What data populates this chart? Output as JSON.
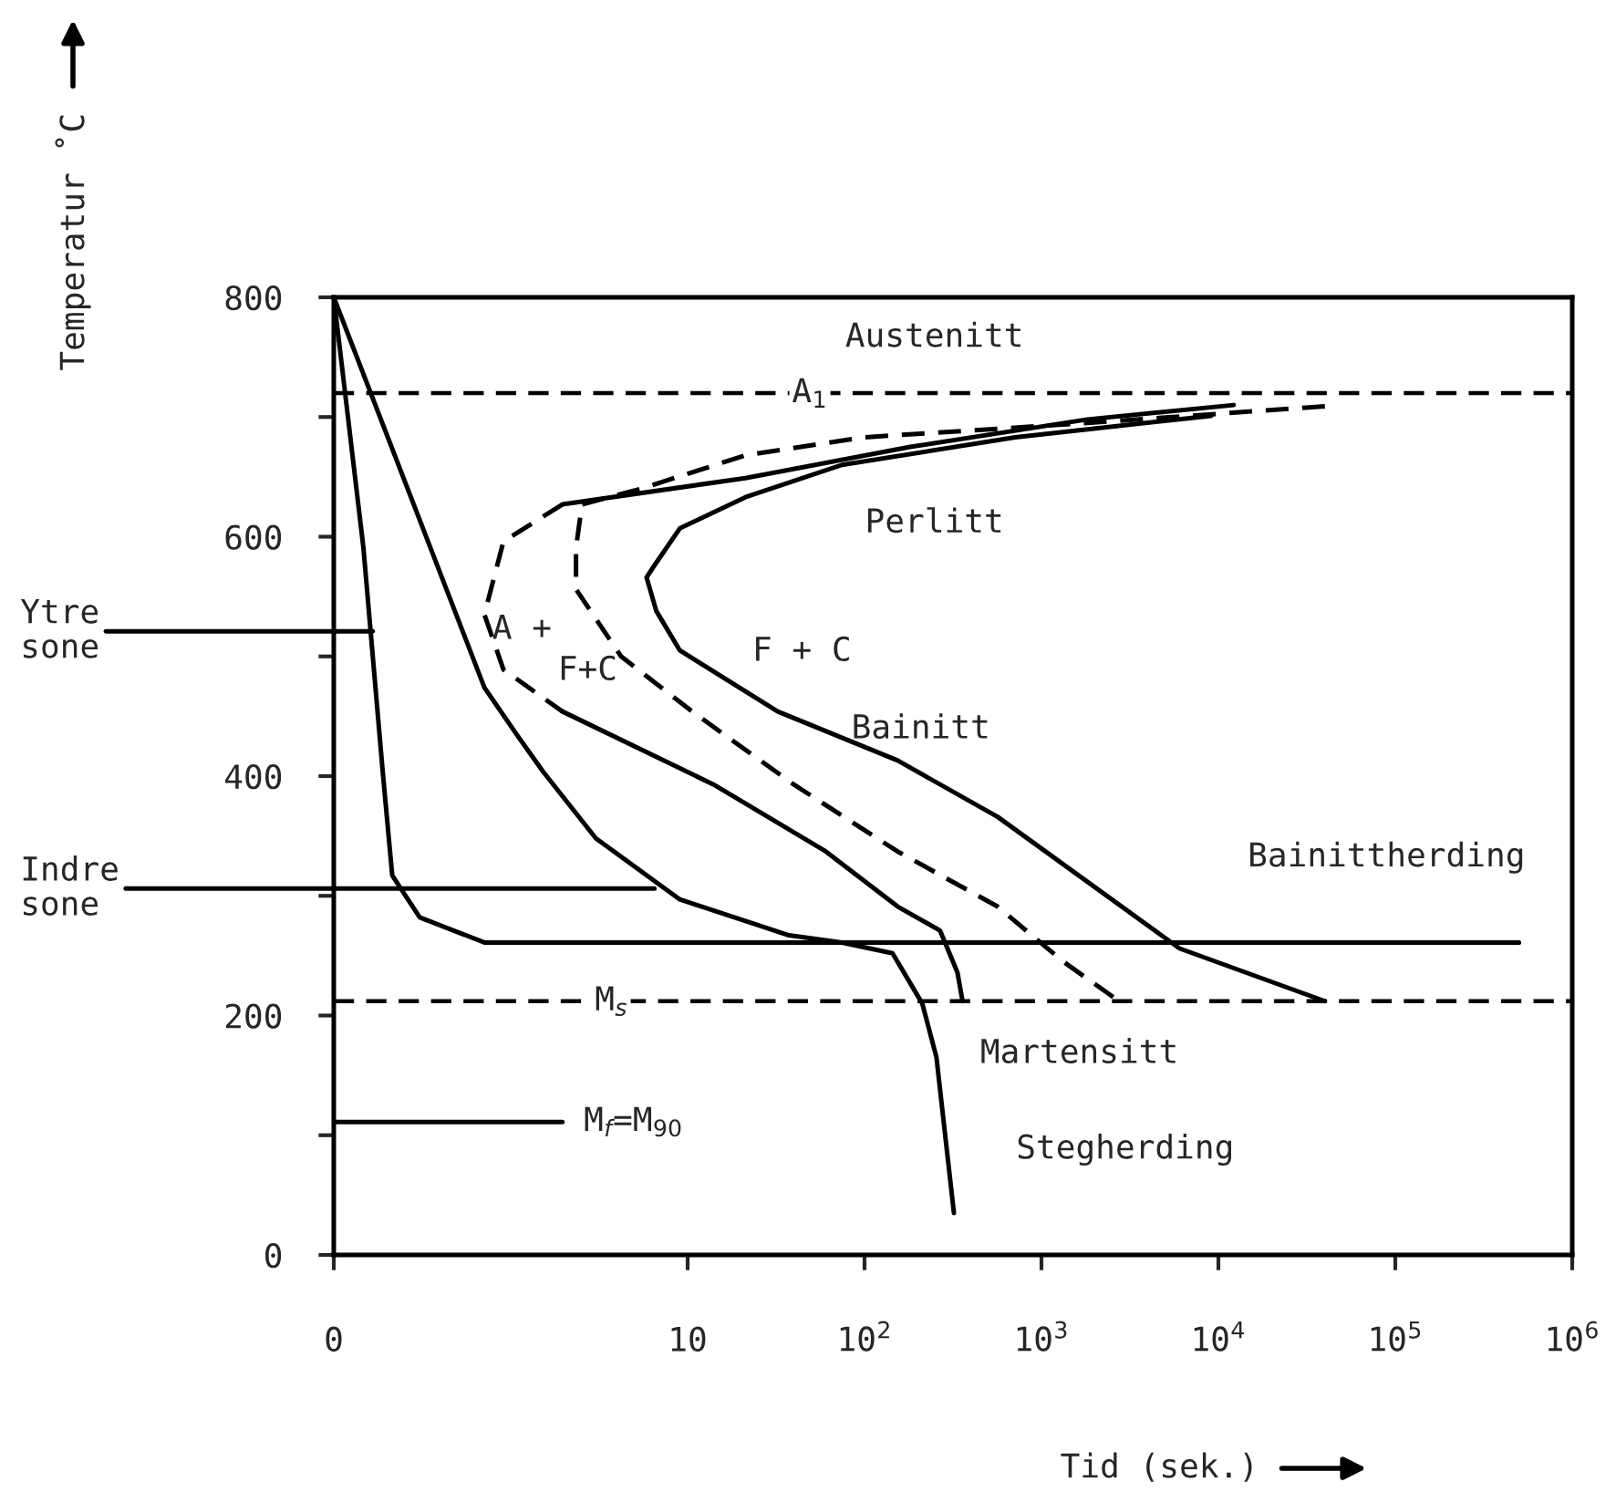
{
  "chart_data": {
    "type": "line",
    "xlabel": "Tid (sek.)",
    "ylabel": "Temperatur ˚C",
    "log": "x",
    "grid": false,
    "legend": false,
    "marker": "none",
    "xlim": [
      0.1,
      1000000
    ],
    "xticks": [
      {
        "value": 0.1,
        "label": "0"
      },
      10,
      {
        "value": 100,
        "label": "10$^{2}$"
      },
      {
        "value": 1000,
        "label": "10$^{3}$"
      },
      {
        "value": 10000,
        "label": "10$^{4}$"
      },
      {
        "value": 100000,
        "label": "10$^{5}$"
      },
      {
        "value": 1000000,
        "label": "10$^{6}$"
      }
    ],
    "ylim": [
      0,
      800
    ],
    "yticks": [
      0,
      {
        "value": 100,
        "label": null
      },
      200,
      {
        "value": 300,
        "label": null
      },
      400,
      {
        "value": 500,
        "label": null
      },
      600,
      {
        "value": 700,
        "label": null
      },
      800
    ],
    "series": [
      {
        "color": "#000000",
        "line_style": "solid",
        "x": [
          0.1,
          0.147,
          0.189,
          0.214,
          0.306,
          0.71,
          5.43,
          74.6,
          1820,
          19000,
          500000
        ],
        "values": [
          800,
          591,
          404,
          317,
          282,
          261,
          261,
          261,
          261,
          261,
          261
        ]
      },
      {
        "color": "#000000",
        "line_style": "solid",
        "x": [
          0.1,
          0.71,
          1.09,
          1.52,
          3.03,
          9.04,
          37.4,
          74.6,
          144,
          212,
          255,
          320
        ],
        "values": [
          800,
          474,
          434,
          404,
          348,
          297,
          267,
          261,
          252,
          210,
          165,
          35
        ]
      },
      {
        "color": "#000000",
        "line_style": "solid",
        "x": [
          12200,
          1820,
          181,
          21.2,
          1.96
        ],
        "values": [
          710,
          698,
          675,
          649,
          627
        ]
      },
      {
        "color": "#000000",
        "line_style": "dashed",
        "x": [
          1.96,
          0.91,
          0.71,
          0.91,
          1.96
        ],
        "values": [
          627,
          596,
          535,
          489,
          454
        ]
      },
      {
        "color": "#000000",
        "line_style": "solid",
        "x": [
          1.96,
          14.0,
          60.5,
          154,
          267,
          335,
          358
        ],
        "values": [
          454,
          393,
          337,
          291,
          271,
          236,
          212
        ]
      },
      {
        "color": "#000000",
        "line_style": "dashed",
        "x": [
          40000,
          1820,
          97.9,
          21.2,
          5.43,
          2.53,
          2.34,
          2.34,
          4.21,
          10.6,
          39.8,
          154,
          565,
          1330,
          2740
        ],
        "values": [
          709,
          695,
          683,
          668,
          640,
          627,
          591,
          556,
          500,
          454,
          393,
          337,
          291,
          245,
          212
        ]
      },
      {
        "color": "#000000",
        "line_style": "solid",
        "x": [
          9080,
          710,
          74.6,
          21.2,
          9.04,
          6.49,
          5.86,
          6.65,
          9.04,
          32.3,
          154,
          565,
          6040,
          40000
        ],
        "values": [
          701,
          683,
          660,
          633,
          607,
          576,
          566,
          538,
          505,
          454,
          413,
          366,
          256,
          212
        ]
      },
      {
        "color": "#000000",
        "line_style": "solid",
        "x": [
          0.1,
          0.166
        ],
        "values": [
          521,
          521
        ]
      },
      {
        "color": "#000000",
        "line_style": "solid",
        "x": [
          0.1,
          6.49
        ],
        "values": [
          306,
          306
        ]
      },
      {
        "color": "#000000",
        "line_style": "solid",
        "x": [
          1.96,
          0.1
        ],
        "values": [
          111,
          111
        ]
      }
    ],
    "ref_lines": [
      {
        "axis": "y",
        "value": 720,
        "color": "#000000",
        "line_style": "dashed"
      },
      {
        "axis": "y",
        "value": 212,
        "color": "#000000",
        "line_style": "dashed"
      }
    ],
    "annotations": [
      "Austenitt",
      {
        "text": "A$_{1}$",
        "x": 49.1,
        "y": 720
      },
      "Perlitt",
      "A +",
      "F+C",
      "F + C",
      "Bainitt",
      "Bainittherding",
      {
        "text": "M$_{s}$",
        "x": 3.71,
        "y": 212
      },
      "Martensitt",
      "Stegherding",
      "M$_{f}$=M$_{90}$",
      {
        "text": "Ytre\nsone",
        "x": 0.1,
        "y": 521
      },
      {
        "text": "Indre\nsone",
        "x": 0.1,
        "y": 306
      }
    ]
  }
}
